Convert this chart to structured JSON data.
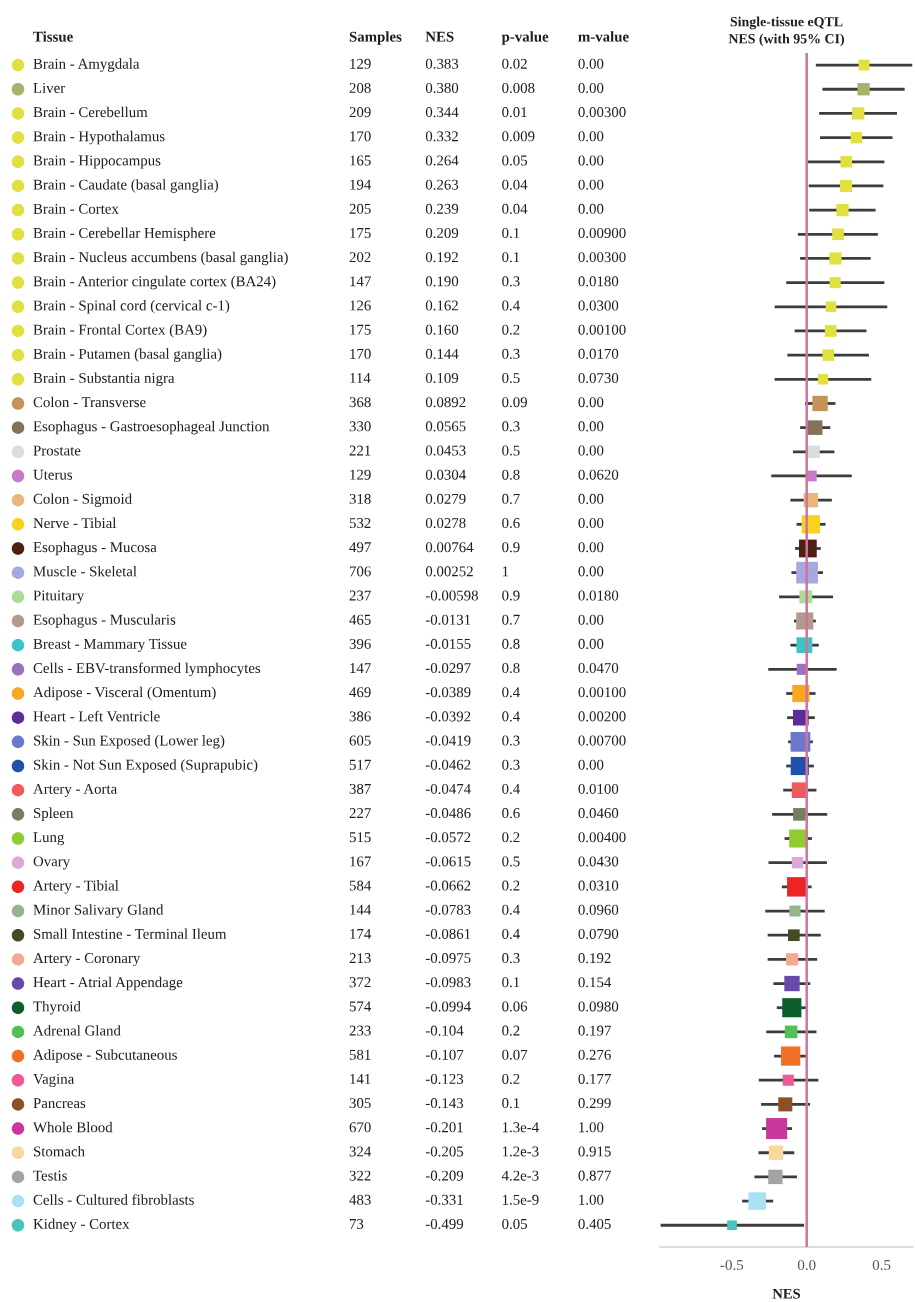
{
  "chart_data": [
    {
      "type": "heatmap",
      "ylabel": "Tissue",
      "categories": [
        "Samples",
        "NES",
        "p-value",
        "m-value"
      ],
      "y_categories": [
        "Brain - Amygdala",
        "Liver",
        "Brain - Cerebellum",
        "Brain - Hypothalamus",
        "Brain - Hippocampus",
        "Brain - Caudate (basal ganglia)",
        "Brain - Cortex",
        "Brain - Cerebellar Hemisphere",
        "Brain - Nucleus accumbens (basal ganglia)",
        "Brain - Anterior cingulate cortex (BA24)",
        "Brain - Spinal cord (cervical c-1)",
        "Brain - Frontal Cortex (BA9)",
        "Brain - Putamen (basal ganglia)",
        "Brain - Substantia nigra",
        "Colon - Transverse",
        "Esophagus - Gastroesophageal Junction",
        "Prostate",
        "Uterus",
        "Colon - Sigmoid",
        "Nerve - Tibial",
        "Esophagus - Mucosa",
        "Muscle - Skeletal",
        "Pituitary",
        "Esophagus - Muscularis",
        "Breast - Mammary Tissue",
        "Cells - EBV-transformed lymphocytes",
        "Adipose - Visceral (Omentum)",
        "Heart - Left Ventricle",
        "Skin - Sun Exposed (Lower leg)",
        "Skin - Not Sun Exposed (Suprapubic)",
        "Artery - Aorta",
        "Spleen",
        "Lung",
        "Ovary",
        "Artery - Tibial",
        "Minor Salivary Gland",
        "Small Intestine - Terminal Ileum",
        "Artery - Coronary",
        "Heart - Atrial Appendage",
        "Thyroid",
        "Adrenal Gland",
        "Adipose - Subcutaneous",
        "Vagina",
        "Pancreas",
        "Whole Blood",
        "Stomach",
        "Testis",
        "Cells - Cultured fibroblasts",
        "Kidney - Cortex"
      ],
      "cells": [
        [
          129,
          0.383,
          0.02,
          0
        ],
        [
          208,
          0.38,
          0.008,
          0
        ],
        [
          209,
          0.344,
          0.01,
          0.003
        ],
        [
          170,
          0.332,
          0.009,
          0
        ],
        [
          165,
          0.264,
          0.05,
          0
        ],
        [
          194,
          0.263,
          0.04,
          0
        ],
        [
          205,
          0.239,
          0.04,
          0
        ],
        [
          175,
          0.209,
          0.1,
          0.009
        ],
        [
          202,
          0.192,
          0.1,
          0.003
        ],
        [
          147,
          0.19,
          0.3,
          0.018
        ],
        [
          126,
          0.162,
          0.4,
          0.03
        ],
        [
          175,
          0.16,
          0.2,
          0.001
        ],
        [
          170,
          0.144,
          0.3,
          0.017
        ],
        [
          114,
          0.109,
          0.5,
          0.073
        ],
        [
          368,
          0.0892,
          0.09,
          0
        ],
        [
          330,
          0.0565,
          0.3,
          0
        ],
        [
          221,
          0.0453,
          0.5,
          0
        ],
        [
          129,
          0.0304,
          0.8,
          0.062
        ],
        [
          318,
          0.0279,
          0.7,
          0
        ],
        [
          532,
          0.0278,
          0.6,
          0
        ],
        [
          497,
          0.00764,
          0.9,
          0
        ],
        [
          706,
          0.00252,
          1,
          0
        ],
        [
          237,
          -0.00598,
          0.9,
          0.018
        ],
        [
          465,
          -0.0131,
          0.7,
          0
        ],
        [
          396,
          -0.0155,
          0.8,
          0
        ],
        [
          147,
          -0.0297,
          0.8,
          0.047
        ],
        [
          469,
          -0.0389,
          0.4,
          0.001
        ],
        [
          386,
          -0.0392,
          0.4,
          0.002
        ],
        [
          605,
          -0.0419,
          0.3,
          0.007
        ],
        [
          517,
          -0.0462,
          0.3,
          0
        ],
        [
          387,
          -0.0474,
          0.4,
          0.01
        ],
        [
          227,
          -0.0486,
          0.6,
          0.046
        ],
        [
          515,
          -0.0572,
          0.2,
          0.004
        ],
        [
          167,
          -0.0615,
          0.5,
          0.043
        ],
        [
          584,
          -0.0662,
          0.2,
          0.031
        ],
        [
          144,
          -0.0783,
          0.4,
          0.096
        ],
        [
          174,
          -0.0861,
          0.4,
          0.079
        ],
        [
          213,
          -0.0975,
          0.3,
          0.192
        ],
        [
          372,
          -0.0983,
          0.1,
          0.154
        ],
        [
          574,
          -0.0994,
          0.06,
          0.098
        ],
        [
          233,
          -0.104,
          0.2,
          0.197
        ],
        [
          581,
          -0.107,
          0.07,
          0.276
        ],
        [
          141,
          -0.123,
          0.2,
          0.177
        ],
        [
          305,
          -0.143,
          0.1,
          0.299
        ],
        [
          670,
          -0.201,
          0.00013,
          1
        ],
        [
          324,
          -0.205,
          0.0012,
          0.915
        ],
        [
          322,
          -0.209,
          0.0042,
          0.877
        ],
        [
          483,
          -0.331,
          1.5e-09,
          1
        ],
        [
          73,
          -0.499,
          0.05,
          0.405
        ]
      ],
      "cell_labels": [
        [
          "129",
          "0.383",
          "0.02",
          "0.00"
        ],
        [
          "208",
          "0.380",
          "0.008",
          "0.00"
        ],
        [
          "209",
          "0.344",
          "0.01",
          "0.00300"
        ],
        [
          "170",
          "0.332",
          "0.009",
          "0.00"
        ],
        [
          "165",
          "0.264",
          "0.05",
          "0.00"
        ],
        [
          "194",
          "0.263",
          "0.04",
          "0.00"
        ],
        [
          "205",
          "0.239",
          "0.04",
          "0.00"
        ],
        [
          "175",
          "0.209",
          "0.1",
          "0.00900"
        ],
        [
          "202",
          "0.192",
          "0.1",
          "0.00300"
        ],
        [
          "147",
          "0.190",
          "0.3",
          "0.0180"
        ],
        [
          "126",
          "0.162",
          "0.4",
          "0.0300"
        ],
        [
          "175",
          "0.160",
          "0.2",
          "0.00100"
        ],
        [
          "170",
          "0.144",
          "0.3",
          "0.0170"
        ],
        [
          "114",
          "0.109",
          "0.5",
          "0.0730"
        ],
        [
          "368",
          "0.0892",
          "0.09",
          "0.00"
        ],
        [
          "330",
          "0.0565",
          "0.3",
          "0.00"
        ],
        [
          "221",
          "0.0453",
          "0.5",
          "0.00"
        ],
        [
          "129",
          "0.0304",
          "0.8",
          "0.0620"
        ],
        [
          "318",
          "0.0279",
          "0.7",
          "0.00"
        ],
        [
          "532",
          "0.0278",
          "0.6",
          "0.00"
        ],
        [
          "497",
          "0.00764",
          "0.9",
          "0.00"
        ],
        [
          "706",
          "0.00252",
          "1",
          "0.00"
        ],
        [
          "237",
          "-0.00598",
          "0.9",
          "0.0180"
        ],
        [
          "465",
          "-0.0131",
          "0.7",
          "0.00"
        ],
        [
          "396",
          "-0.0155",
          "0.8",
          "0.00"
        ],
        [
          "147",
          "-0.0297",
          "0.8",
          "0.0470"
        ],
        [
          "469",
          "-0.0389",
          "0.4",
          "0.00100"
        ],
        [
          "386",
          "-0.0392",
          "0.4",
          "0.00200"
        ],
        [
          "605",
          "-0.0419",
          "0.3",
          "0.00700"
        ],
        [
          "517",
          "-0.0462",
          "0.3",
          "0.00"
        ],
        [
          "387",
          "-0.0474",
          "0.4",
          "0.0100"
        ],
        [
          "227",
          "-0.0486",
          "0.6",
          "0.0460"
        ],
        [
          "515",
          "-0.0572",
          "0.2",
          "0.00400"
        ],
        [
          "167",
          "-0.0615",
          "0.5",
          "0.0430"
        ],
        [
          "584",
          "-0.0662",
          "0.2",
          "0.0310"
        ],
        [
          "144",
          "-0.0783",
          "0.4",
          "0.0960"
        ],
        [
          "174",
          "-0.0861",
          "0.4",
          "0.0790"
        ],
        [
          "213",
          "-0.0975",
          "0.3",
          "0.192"
        ],
        [
          "372",
          "-0.0983",
          "0.1",
          "0.154"
        ],
        [
          "574",
          "-0.0994",
          "0.06",
          "0.0980"
        ],
        [
          "233",
          "-0.104",
          "0.2",
          "0.197"
        ],
        [
          "581",
          "-0.107",
          "0.07",
          "0.276"
        ],
        [
          "141",
          "-0.123",
          "0.2",
          "0.177"
        ],
        [
          "305",
          "-0.143",
          "0.1",
          "0.299"
        ],
        [
          "670",
          "-0.201",
          "1.3e-4",
          "1.00"
        ],
        [
          "324",
          "-0.205",
          "1.2e-3",
          "0.915"
        ],
        [
          "322",
          "-0.209",
          "4.2e-3",
          "0.877"
        ],
        [
          "483",
          "-0.331",
          "1.5e-9",
          "1.00"
        ],
        [
          "73",
          "-0.499",
          "0.05",
          "0.405"
        ]
      ]
    },
    {
      "type": "bubble",
      "orientation": "horizontal",
      "title": "Single-tissue eQTL\nNES (with 95% CI)",
      "xlabel": "NES",
      "marker": "square",
      "categories": [
        null,
        null,
        null,
        null,
        null,
        null,
        null,
        null,
        null,
        null,
        null,
        null,
        null,
        null,
        null,
        null,
        null,
        null,
        null,
        null,
        null,
        null,
        null,
        null,
        null,
        null,
        null,
        null,
        null,
        null,
        null,
        null,
        null,
        null,
        null,
        null,
        null,
        null,
        null,
        null,
        null,
        null,
        null,
        null,
        null,
        null,
        null,
        null,
        null
      ],
      "values": [
        0.383,
        0.38,
        0.344,
        0.332,
        0.264,
        0.263,
        0.239,
        0.209,
        0.192,
        0.19,
        0.162,
        0.16,
        0.144,
        0.109,
        0.0892,
        0.0565,
        0.0453,
        0.0304,
        0.0279,
        0.0278,
        0.00764,
        0.00252,
        -0.00598,
        -0.0131,
        -0.0155,
        -0.0297,
        -0.0389,
        -0.0392,
        -0.0419,
        -0.0462,
        -0.0474,
        -0.0486,
        -0.0572,
        -0.0615,
        -0.0662,
        -0.0783,
        -0.0861,
        -0.0975,
        -0.0983,
        -0.0994,
        -0.104,
        -0.107,
        -0.123,
        -0.143,
        -0.201,
        -0.205,
        -0.209,
        -0.331,
        -0.499
      ],
      "errors": [
        [
          0.061,
          0.705
        ],
        [
          0.105,
          0.654
        ],
        [
          0.083,
          0.603
        ],
        [
          0.089,
          0.573
        ],
        [
          0.007,
          0.519
        ],
        [
          0.013,
          0.512
        ],
        [
          0.017,
          0.46
        ],
        [
          -0.059,
          0.475
        ],
        [
          -0.044,
          0.427
        ],
        [
          -0.137,
          0.519
        ],
        [
          -0.214,
          0.538
        ],
        [
          -0.081,
          0.399
        ],
        [
          -0.129,
          0.416
        ],
        [
          -0.214,
          0.431
        ],
        [
          -0.011,
          0.192
        ],
        [
          -0.044,
          0.157
        ],
        [
          -0.092,
          0.185
        ],
        [
          -0.237,
          0.301
        ],
        [
          -0.109,
          0.168
        ],
        [
          -0.068,
          0.126
        ],
        [
          -0.078,
          0.094
        ],
        [
          -0.102,
          0.109
        ],
        [
          -0.185,
          0.176
        ],
        [
          -0.085,
          0.061
        ],
        [
          -0.109,
          0.081
        ],
        [
          -0.257,
          0.2
        ],
        [
          -0.137,
          0.059
        ],
        [
          -0.131,
          0.054
        ],
        [
          -0.124,
          0.041
        ],
        [
          -0.137,
          0.048
        ],
        [
          -0.157,
          0.065
        ],
        [
          -0.231,
          0.137
        ],
        [
          -0.148,
          0.035
        ],
        [
          -0.255,
          0.135
        ],
        [
          -0.166,
          0.033
        ],
        [
          -0.277,
          0.12
        ],
        [
          -0.261,
          0.094
        ],
        [
          -0.261,
          0.07
        ],
        [
          -0.222,
          0.024
        ],
        [
          -0.2,
          0.004
        ],
        [
          -0.27,
          0.065
        ],
        [
          -0.218,
          0.007
        ],
        [
          -0.32,
          0.078
        ],
        [
          -0.305,
          0.022
        ],
        [
          -0.298,
          -0.098
        ],
        [
          -0.322,
          -0.083
        ],
        [
          -0.349,
          -0.065
        ],
        [
          -0.431,
          -0.224
        ],
        [
          -0.976,
          -0.017
        ]
      ],
      "sizes": [
        0.25,
        0.32,
        0.32,
        0.28,
        0.28,
        0.31,
        0.32,
        0.29,
        0.31,
        0.26,
        0.24,
        0.29,
        0.28,
        0.23,
        0.5,
        0.45,
        0.33,
        0.25,
        0.44,
        0.72,
        0.67,
        1,
        0.35,
        0.62,
        0.53,
        0.26,
        0.63,
        0.52,
        0.83,
        0.7,
        0.52,
        0.34,
        0.69,
        0.28,
        0.8,
        0.26,
        0.29,
        0.32,
        0.5,
        0.78,
        0.34,
        0.79,
        0.26,
        0.42,
        0.94,
        0.44,
        0.44,
        0.65,
        0.2
      ],
      "colors": [
        "#e0e040",
        "#a3b46a",
        "#e0e040",
        "#e0e040",
        "#e0e040",
        "#e0e040",
        "#e0e040",
        "#e0e040",
        "#e0e040",
        "#e0e040",
        "#e0e040",
        "#e0e040",
        "#e0e040",
        "#e0e040",
        "#c4935a",
        "#857158",
        "#dcdcdc",
        "#c87ac8",
        "#e8b67a",
        "#f8d21c",
        "#4e2010",
        "#a6a8e0",
        "#a8dc98",
        "#b49a8c",
        "#3cc4c8",
        "#9a70c0",
        "#f8a820",
        "#5c2c98",
        "#6c78cc",
        "#2050a8",
        "#f05a5a",
        "#728060",
        "#90cc30",
        "#dca8dc",
        "#ec2424",
        "#98b48c",
        "#484a24",
        "#f4a898",
        "#6848a8",
        "#0e5e2c",
        "#54c054",
        "#f07028",
        "#f05898",
        "#8c5028",
        "#c8389c",
        "#f8d89c",
        "#a4a4a4",
        "#a8e0f4",
        "#48c4bc"
      ],
      "xlim": [
        -0.98,
        0.71
      ],
      "xticks": [
        -0.5,
        {
          "value": 0,
          "label": "0.0"
        },
        0.5
      ],
      "ref_lines": [
        {
          "axis": "x",
          "value": 0,
          "color": "#d0739d"
        }
      ]
    }
  ]
}
